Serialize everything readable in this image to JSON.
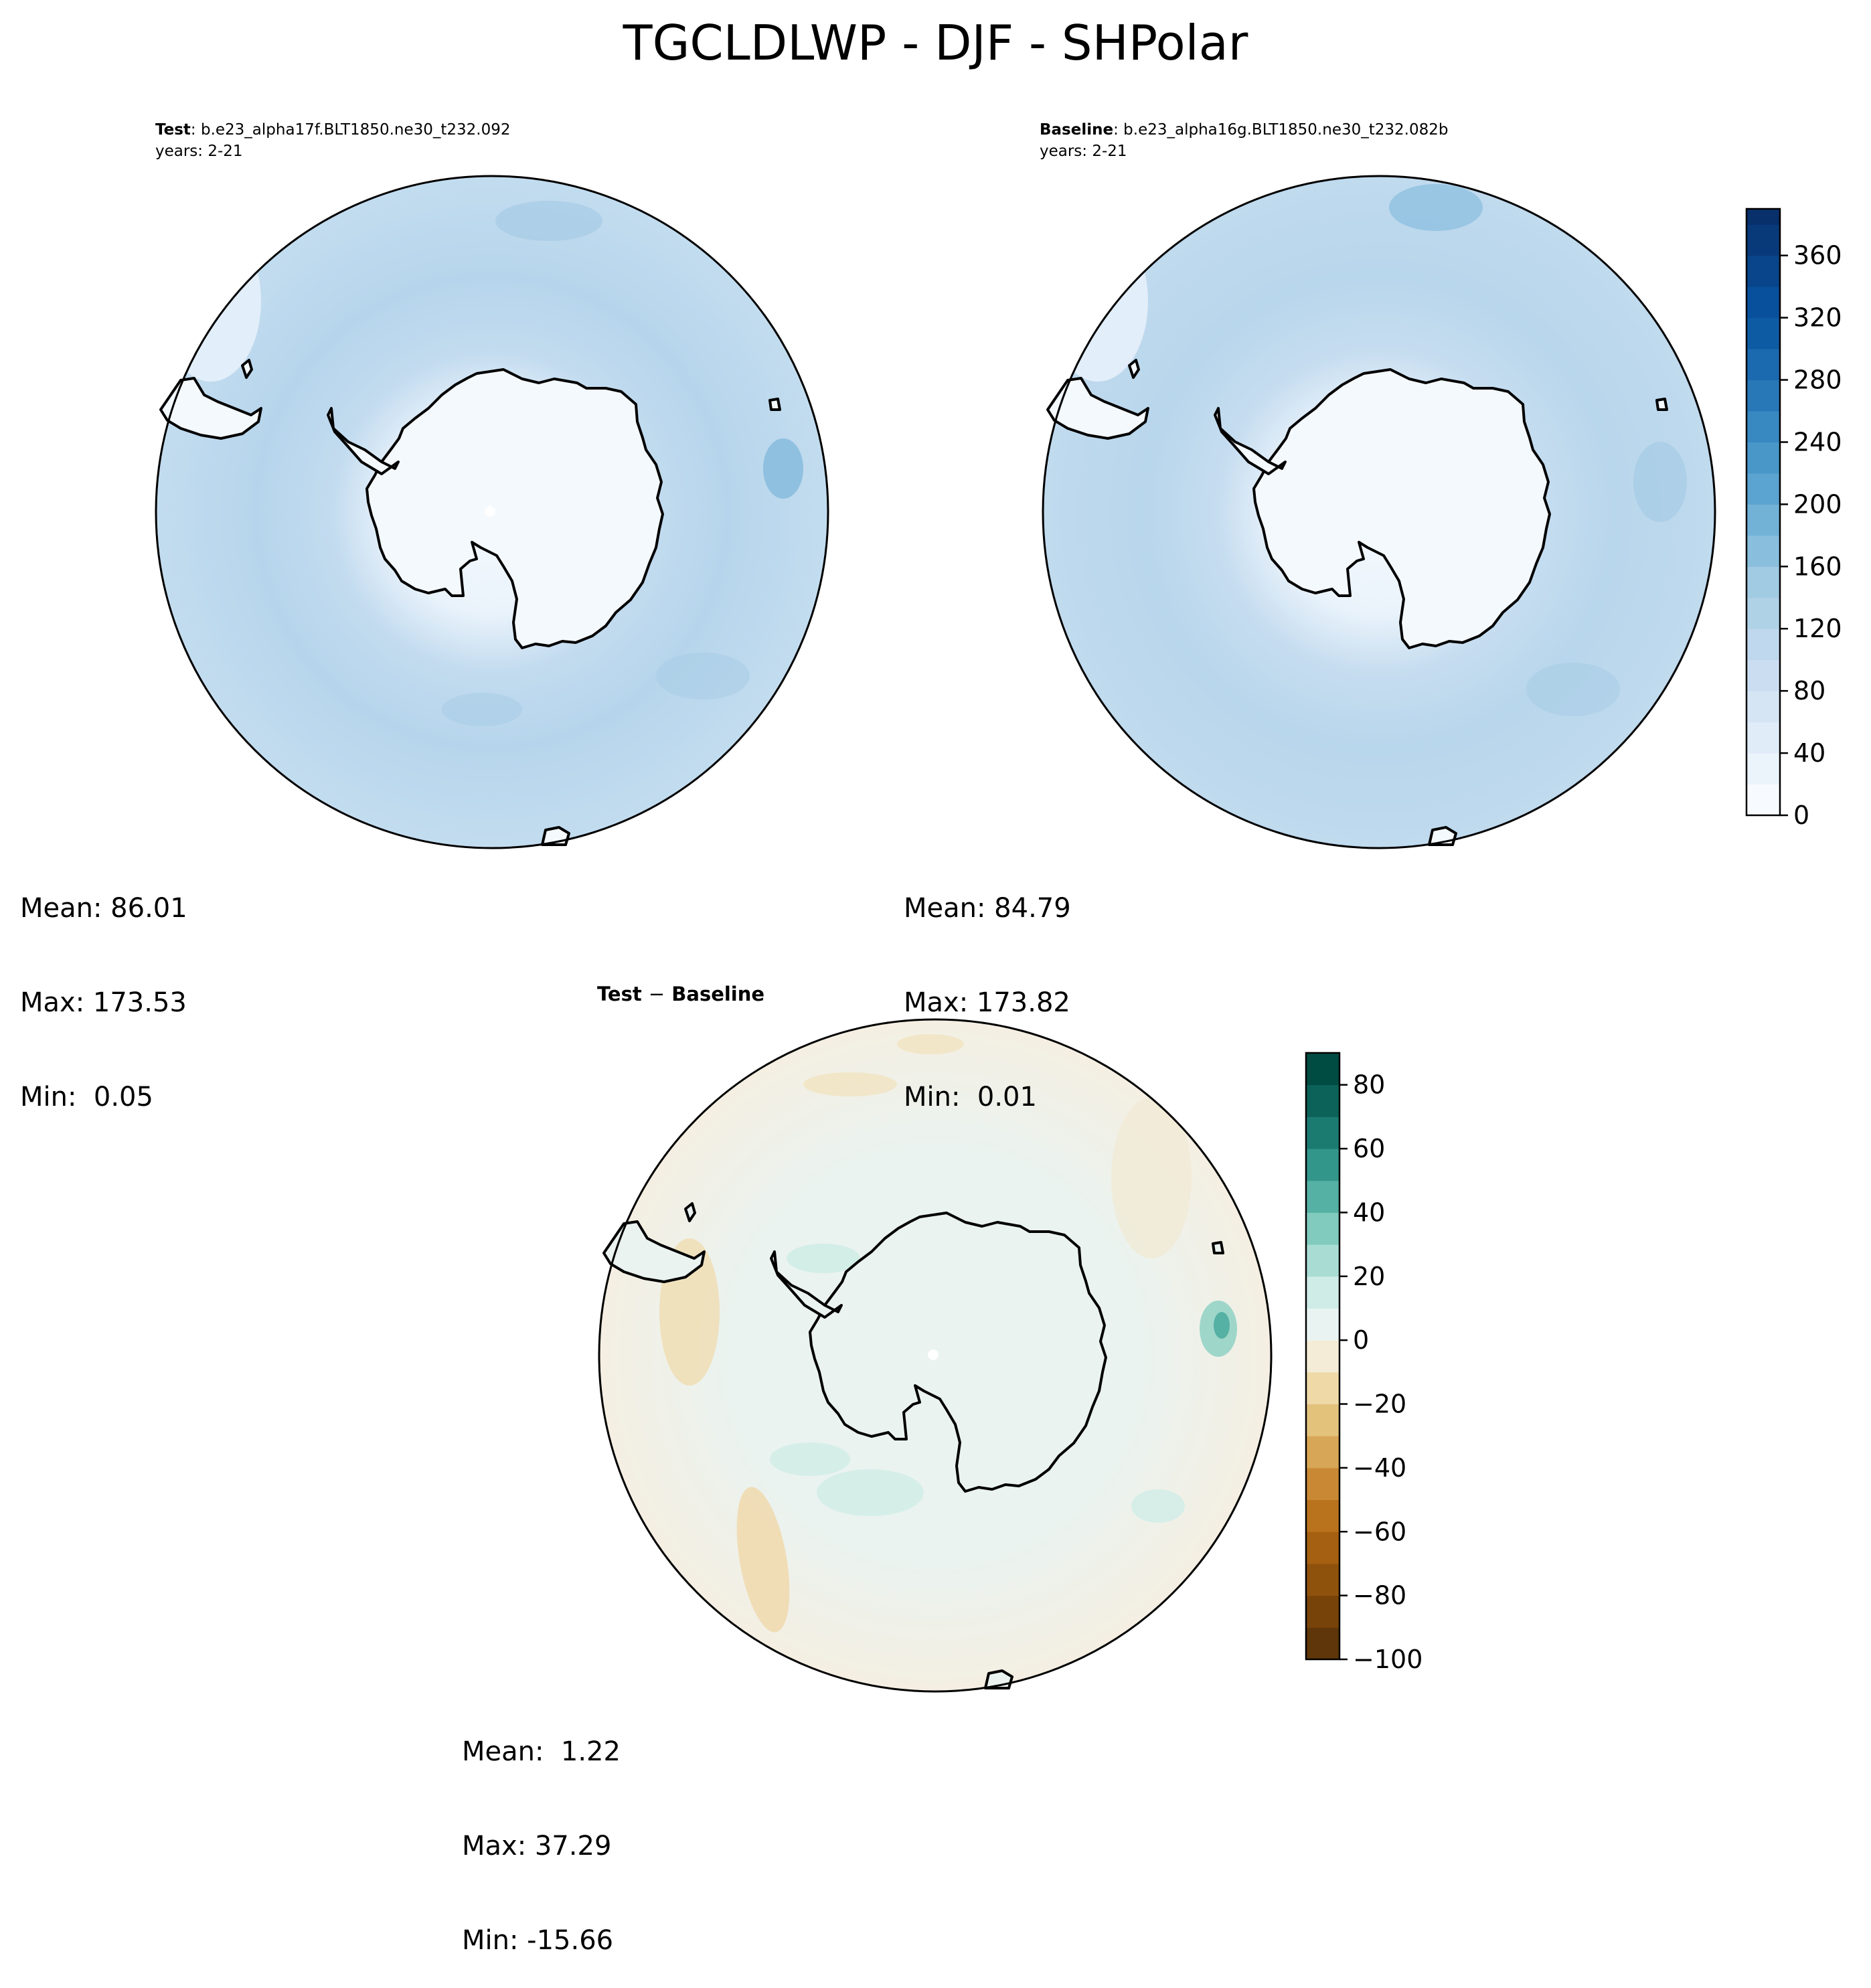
{
  "figure": {
    "title": "TGCLDLWP - DJF - SHPolar"
  },
  "panels": {
    "test": {
      "label": "Test",
      "case": "b.e23_alpha17f.BLT1850.ne30_t232.092",
      "years": "years: 2-21",
      "stats": {
        "mean": "Mean: 86.01",
        "max": "Max: 173.53",
        "min": "Min:  0.05"
      }
    },
    "baseline": {
      "label": "Baseline",
      "case": "b.e23_alpha16g.BLT1850.ne30_t232.082b",
      "years": "years: 2-21",
      "stats": {
        "mean": "Mean: 84.79",
        "max": "Max: 173.82",
        "min": "Min:  0.01"
      }
    },
    "difference": {
      "title_test": "Test",
      "title_sep": "−",
      "title_baseline": "Baseline",
      "stats": {
        "mean": "Mean:  1.22",
        "max": "Max: 37.29",
        "min": "Min: -15.66"
      }
    }
  },
  "chart_data": [
    {
      "type": "heatmap",
      "projection": "south-polar-stereographic",
      "region": "SHPolar",
      "season": "DJF",
      "variable": "TGCLDLWP",
      "panel": "test",
      "statistics": {
        "mean": 86.01,
        "max": 173.53,
        "min": 0.05
      },
      "colorbar": {
        "ref": "absolute"
      }
    },
    {
      "type": "heatmap",
      "projection": "south-polar-stereographic",
      "region": "SHPolar",
      "season": "DJF",
      "variable": "TGCLDLWP",
      "panel": "baseline",
      "statistics": {
        "mean": 84.79,
        "max": 173.82,
        "min": 0.01
      },
      "colorbar": {
        "ref": "absolute"
      }
    },
    {
      "type": "heatmap",
      "projection": "south-polar-stereographic",
      "region": "SHPolar",
      "season": "DJF",
      "variable": "TGCLDLWP",
      "panel": "difference",
      "statistics": {
        "mean": 1.22,
        "max": 37.29,
        "min": -15.66
      },
      "colorbar": {
        "ref": "difference"
      }
    }
  ],
  "colorbars": {
    "absolute": {
      "colormap": "Blues",
      "range": [
        0,
        390
      ],
      "levels": [
        0,
        20,
        40,
        60,
        80,
        100,
        120,
        140,
        160,
        180,
        200,
        220,
        240,
        260,
        280,
        300,
        320,
        340,
        360,
        380,
        390
      ],
      "ticks": [
        "0",
        "40",
        "80",
        "120",
        "160",
        "200",
        "240",
        "280",
        "320",
        "360"
      ],
      "tick_values": [
        0,
        40,
        80,
        120,
        160,
        200,
        240,
        280,
        320,
        360
      ],
      "colors": [
        "#f7fbff",
        "#ebf3fb",
        "#e0ecf8",
        "#d5e5f4",
        "#cbdef1",
        "#bfd8ed",
        "#b0d2e7",
        "#a0cbe2",
        "#89bedc",
        "#72b2d7",
        "#5ba3d0",
        "#4997c9",
        "#3888c1",
        "#2878b8",
        "#1b69af",
        "#0d5ba3",
        "#08509b",
        "#08458a",
        "#083a7a",
        "#08306b"
      ]
    },
    "difference": {
      "colormap": "BrBG",
      "range": [
        -100,
        90
      ],
      "levels": [
        -100,
        -90,
        -80,
        -70,
        -60,
        -50,
        -40,
        -30,
        -20,
        -10,
        0,
        10,
        20,
        30,
        40,
        50,
        60,
        70,
        80,
        90
      ],
      "ticks": [
        "−100",
        "−80",
        "−60",
        "−40",
        "−20",
        "0",
        "20",
        "40",
        "60",
        "80"
      ],
      "tick_values": [
        -100,
        -80,
        -60,
        -40,
        -20,
        0,
        20,
        40,
        60,
        80
      ],
      "colors": [
        "#5e3609",
        "#784309",
        "#8f520c",
        "#a66011",
        "#b9731d",
        "#c98934",
        "#d7a656",
        "#e3c27c",
        "#eed9a7",
        "#f4ecd6",
        "#e9f4f2",
        "#cfece7",
        "#a9ddd4",
        "#80cbbd",
        "#55b1a3",
        "#33968b",
        "#1b7b71",
        "#0c6259",
        "#004c42"
      ]
    }
  }
}
